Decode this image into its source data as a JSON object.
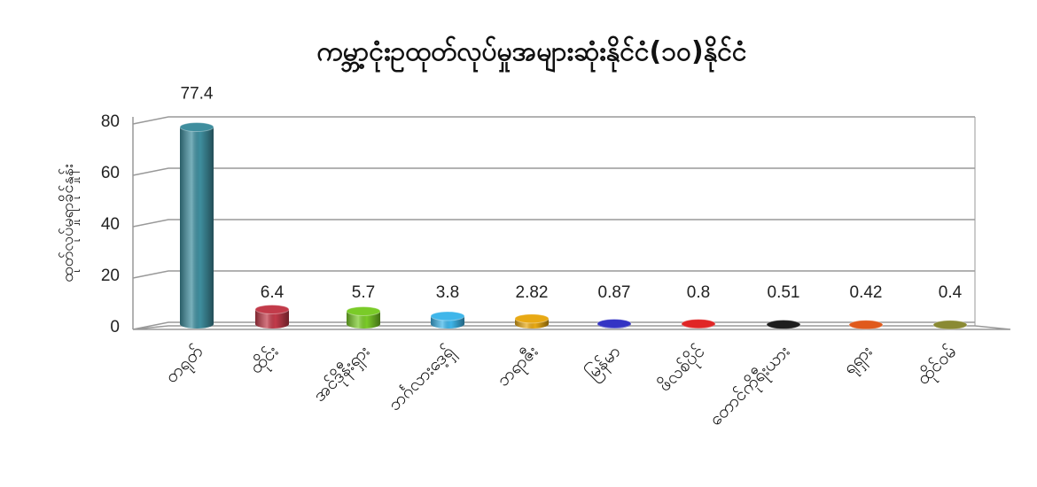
{
  "chart_data": {
    "type": "bar",
    "title": "ကမ္ဘာ့ငုံးဥထုတ်လုပ်မှုအများဆုံးနိုင်ငံ(၁၀)နိုင်ငံ",
    "xlabel": "",
    "ylabel": "ထုတ်လုပ်မှုရာခိုင်နှုန်း",
    "ylim": [
      0,
      80
    ],
    "yticks": [
      0,
      20,
      40,
      60,
      80
    ],
    "grid": true,
    "style": "3d-cylinder",
    "categories": [
      "တရုတ်",
      "ထိုင်း",
      "အင်ဒိုနီးရှား",
      "ဘင်္ဂလားဒေ့ရှ်",
      "ဘရာဇီး",
      "မြန်မာ",
      "ဖိလစ်ပိုင်",
      "တောင်ကိုရီးယား",
      "ရုရှား",
      "ထိုင်ဝမ်"
    ],
    "values": [
      77.4,
      6.4,
      5.7,
      3.8,
      2.82,
      0.87,
      0.8,
      0.51,
      0.42,
      0.4
    ],
    "value_labels": [
      "77.4",
      "6.4",
      "5.7",
      "3.8",
      "2.82",
      "0.87",
      "0.8",
      "0.51",
      "0.42",
      "0.4"
    ],
    "colors": [
      "#3f8e9e",
      "#c23b4a",
      "#7acb28",
      "#3fb6ea",
      "#e8a914",
      "#3434c4",
      "#e02626",
      "#1e1e1e",
      "#e05a1c",
      "#8a8a34"
    ]
  }
}
